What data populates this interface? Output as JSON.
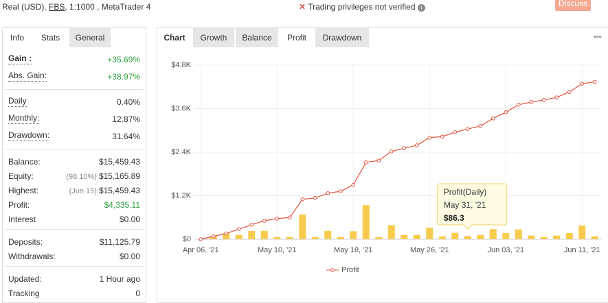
{
  "header": {
    "account": [
      "Real (USD), ",
      "FBS",
      ", 1:1000 , MetaTrader 4"
    ],
    "warning": "Trading privileges not verified",
    "button": "Discuss"
  },
  "left_tabs": [
    "Info",
    "Stats",
    "General"
  ],
  "stats": [
    [
      {
        "label": "Gain :",
        "value": "+35.69%",
        "color": "#2e9e3e"
      },
      {
        "label": "Abs. Gain:",
        "value": "+38.97%",
        "color": "#2e9e3e"
      }
    ],
    [
      {
        "label": "Daily",
        "value": "0.40%"
      },
      {
        "label": "Monthly:",
        "value": "12.87%"
      },
      {
        "label": "Drawdown:",
        "value": "31.64%"
      }
    ],
    [
      {
        "label": "Balance:",
        "value": "$15,459.43"
      },
      {
        "label": "Equity:",
        "note": "(98.10%)",
        "value": "$15,165.89"
      },
      {
        "label": "Highest:",
        "note": "(Jun 15)",
        "value": "$15,459.43"
      },
      {
        "label": "Profit:",
        "value": "$4,335.11",
        "color": "#2e9e3e"
      },
      {
        "label": "Interest",
        "value": "$0.00"
      }
    ],
    [
      {
        "label": "Deposits:",
        "value": "$11,125.79"
      },
      {
        "label": "Withdrawals:",
        "value": "$0.00"
      }
    ],
    [
      {
        "label": "Updated:",
        "value": "1 Hour ago"
      },
      {
        "label": "Tracking",
        "value": "0"
      }
    ]
  ],
  "right_tabs": [
    "Chart",
    "Growth",
    "Balance",
    "Profit",
    "Drawdown"
  ],
  "chart_data": {
    "type": "line",
    "categories": [
      "Apr 06, '21",
      null,
      null,
      null,
      null,
      null,
      "May 10, '21",
      null,
      null,
      null,
      null,
      null,
      "May 18, '21",
      null,
      null,
      null,
      null,
      null,
      "May 26, '21",
      null,
      null,
      null,
      null,
      null,
      "Jun 03, '21",
      null,
      null,
      null,
      null,
      null,
      "Jun 11, '21",
      null
    ],
    "series": [
      {
        "name": "Profit",
        "color": "#e0533f",
        "values": [
          0,
          80,
          160,
          280,
          400,
          510,
          570,
          600,
          1100,
          1140,
          1270,
          1320,
          1500,
          2120,
          2170,
          2420,
          2510,
          2590,
          2800,
          2830,
          2950,
          3040,
          3120,
          3330,
          3500,
          3710,
          3780,
          3840,
          3910,
          4060,
          4290,
          4335.11
        ]
      },
      {
        "type": "bar",
        "color": "#f7cb4d",
        "values": [
          0,
          80,
          170,
          120,
          230,
          230,
          60,
          60,
          680,
          60,
          230,
          60,
          220,
          940,
          60,
          390,
          120,
          120,
          320,
          80,
          180,
          86.3,
          120,
          280,
          170,
          270,
          100,
          60,
          100,
          170,
          380,
          80
        ]
      }
    ],
    "ylim": [
      0,
      4800
    ],
    "yticks": [
      {
        "value": 0,
        "label": "$0"
      },
      {
        "value": 1200,
        "label": "$1.2K"
      },
      {
        "value": 2400,
        "label": "$2.4K"
      },
      {
        "value": 3600,
        "label": "$3.6K"
      },
      {
        "value": 4800,
        "label": "$4.8K"
      }
    ],
    "grid": true,
    "tooltip": {
      "title": "Profit(Daily)",
      "date": "May 31, '21",
      "value": "$86.3",
      "index": 21
    }
  }
}
